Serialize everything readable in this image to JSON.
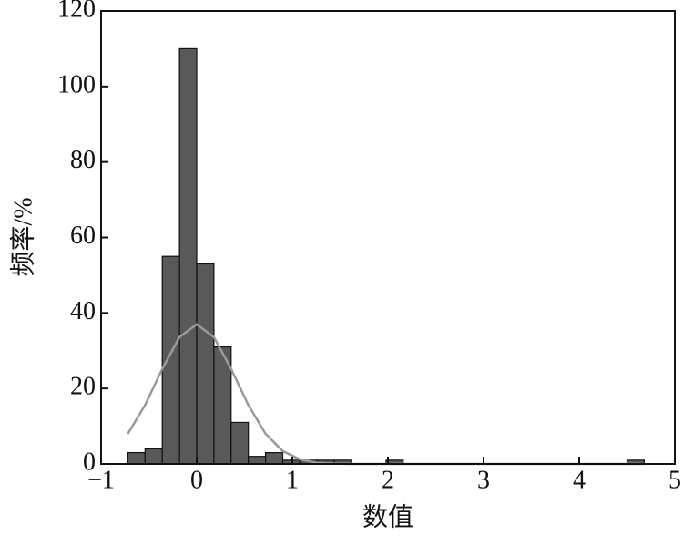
{
  "chart_data": {
    "type": "histogram",
    "xlabel": "数值",
    "ylabel": "频率/%",
    "bins": [
      -0.72,
      -0.54,
      -0.36,
      -0.18,
      0,
      0.18,
      0.36,
      0.54,
      0.72,
      0.9,
      1.08,
      1.26,
      1.44,
      1.62,
      1.8,
      1.98,
      2.16,
      2.34,
      2.52,
      2.7,
      2.88,
      3.06,
      3.24,
      3.42,
      3.6,
      3.78,
      3.96,
      4.14,
      4.32,
      4.5,
      4.68
    ],
    "counts": [
      3,
      4,
      55,
      110,
      53,
      31,
      11,
      2,
      3,
      1,
      1,
      1,
      1,
      0,
      0,
      1,
      0,
      0,
      0,
      0,
      0,
      0,
      0,
      0,
      0,
      0,
      0,
      0,
      0,
      1
    ],
    "color": "#595959",
    "curve": {
      "color": "#9a9a9a",
      "x": [
        -0.72,
        -0.54,
        -0.36,
        -0.18,
        0,
        0.18,
        0.36,
        0.54,
        0.72,
        0.9,
        1.08,
        1.26,
        1.44,
        1.62,
        4.68
      ],
      "y": [
        8,
        15.6,
        25.2,
        33.6,
        37,
        33.6,
        25.2,
        15.6,
        8,
        3.4,
        1.2,
        0.3,
        0.1,
        0,
        0
      ]
    },
    "xlim": [
      -1,
      5
    ],
    "xticks": [
      {
        "value": -1,
        "label": "−1"
      },
      0,
      1,
      2,
      3,
      4,
      5
    ],
    "ylim": [
      0,
      120
    ],
    "yticks": [
      0,
      20,
      40,
      60,
      80,
      100,
      120
    ]
  }
}
